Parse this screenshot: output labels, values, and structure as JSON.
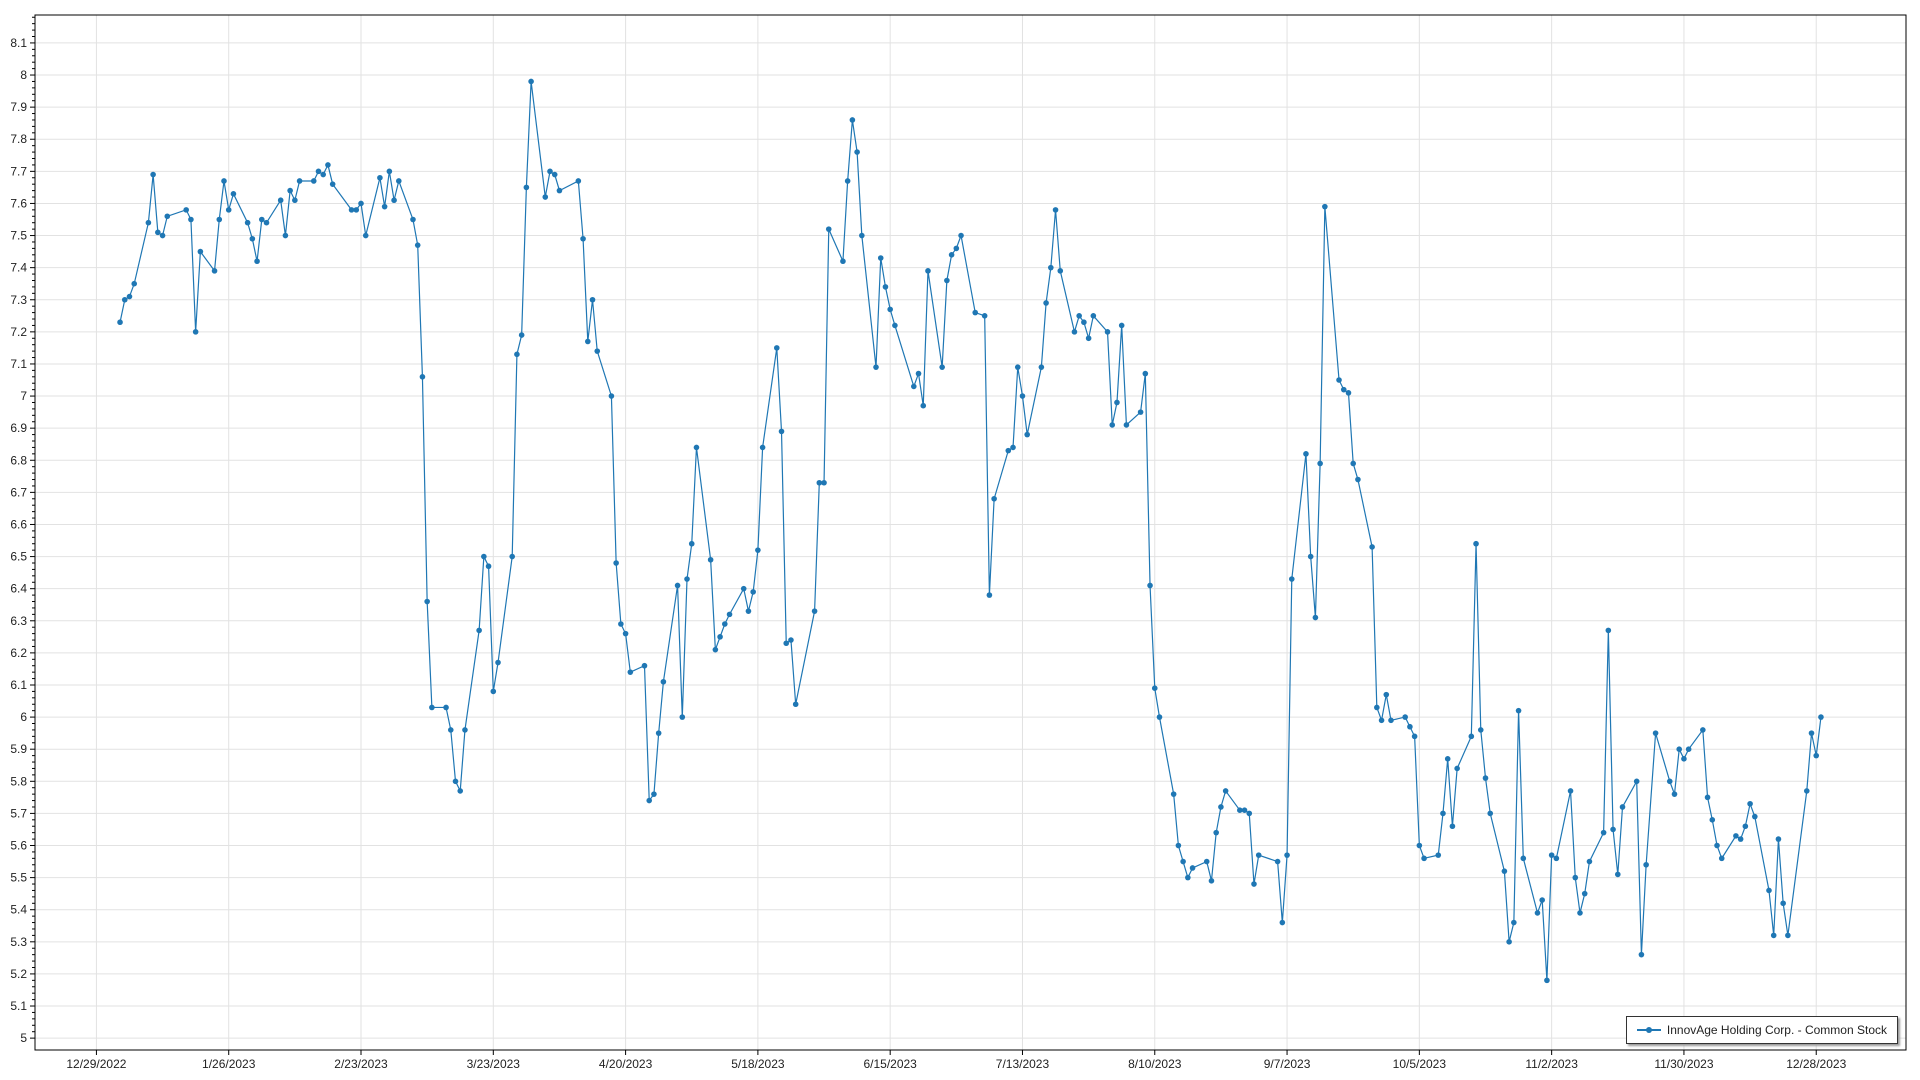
{
  "chart_data": {
    "type": "line",
    "title": "",
    "xlabel": "",
    "ylabel": "",
    "grid": true,
    "legend_placement": "bottom-right",
    "series_color": "#1f77b4",
    "xlim": [
      "2022-12-16",
      "2024-01-16"
    ],
    "ylim": [
      4.963,
      8.187
    ],
    "x_ticks": [
      "12/29/2022",
      "1/26/2023",
      "2/23/2023",
      "3/23/2023",
      "4/20/2023",
      "5/18/2023",
      "6/15/2023",
      "7/13/2023",
      "8/10/2023",
      "9/7/2023",
      "10/5/2023",
      "11/2/2023",
      "11/30/2023",
      "12/28/2023"
    ],
    "y_ticks": [
      "5",
      "5.1",
      "5.2",
      "5.3",
      "5.4",
      "5.5",
      "5.6",
      "5.7",
      "5.8",
      "5.9",
      "6",
      "6.1",
      "6.2",
      "6.3",
      "6.4",
      "6.5",
      "6.6",
      "6.7",
      "6.8",
      "6.9",
      "7",
      "7.1",
      "7.2",
      "7.3",
      "7.4",
      "7.5",
      "7.6",
      "7.7",
      "7.8",
      "7.9",
      "8",
      "8.1"
    ],
    "series": [
      {
        "name": "InnovAge Holding Corp. - Common Stock",
        "points": [
          [
            "2023-01-03",
            7.23
          ],
          [
            "2023-01-04",
            7.3
          ],
          [
            "2023-01-05",
            7.31
          ],
          [
            "2023-01-06",
            7.35
          ],
          [
            "2023-01-09",
            7.54
          ],
          [
            "2023-01-10",
            7.69
          ],
          [
            "2023-01-11",
            7.51
          ],
          [
            "2023-01-12",
            7.5
          ],
          [
            "2023-01-13",
            7.56
          ],
          [
            "2023-01-17",
            7.58
          ],
          [
            "2023-01-18",
            7.55
          ],
          [
            "2023-01-19",
            7.2
          ],
          [
            "2023-01-20",
            7.45
          ],
          [
            "2023-01-23",
            7.39
          ],
          [
            "2023-01-24",
            7.55
          ],
          [
            "2023-01-25",
            7.67
          ],
          [
            "2023-01-26",
            7.58
          ],
          [
            "2023-01-27",
            7.63
          ],
          [
            "2023-01-30",
            7.54
          ],
          [
            "2023-01-31",
            7.49
          ],
          [
            "2023-02-01",
            7.42
          ],
          [
            "2023-02-02",
            7.55
          ],
          [
            "2023-02-03",
            7.54
          ],
          [
            "2023-02-06",
            7.61
          ],
          [
            "2023-02-07",
            7.5
          ],
          [
            "2023-02-08",
            7.64
          ],
          [
            "2023-02-09",
            7.61
          ],
          [
            "2023-02-10",
            7.67
          ],
          [
            "2023-02-13",
            7.67
          ],
          [
            "2023-02-14",
            7.7
          ],
          [
            "2023-02-15",
            7.69
          ],
          [
            "2023-02-16",
            7.72
          ],
          [
            "2023-02-17",
            7.66
          ],
          [
            "2023-02-21",
            7.58
          ],
          [
            "2023-02-22",
            7.58
          ],
          [
            "2023-02-23",
            7.6
          ],
          [
            "2023-02-24",
            7.5
          ],
          [
            "2023-02-27",
            7.68
          ],
          [
            "2023-02-28",
            7.59
          ],
          [
            "2023-03-01",
            7.7
          ],
          [
            "2023-03-02",
            7.61
          ],
          [
            "2023-03-03",
            7.67
          ],
          [
            "2023-03-06",
            7.55
          ],
          [
            "2023-03-07",
            7.47
          ],
          [
            "2023-03-08",
            7.06
          ],
          [
            "2023-03-09",
            6.36
          ],
          [
            "2023-03-10",
            6.03
          ],
          [
            "2023-03-13",
            6.03
          ],
          [
            "2023-03-14",
            5.96
          ],
          [
            "2023-03-15",
            5.8
          ],
          [
            "2023-03-16",
            5.77
          ],
          [
            "2023-03-17",
            5.96
          ],
          [
            "2023-03-20",
            6.27
          ],
          [
            "2023-03-21",
            6.5
          ],
          [
            "2023-03-22",
            6.47
          ],
          [
            "2023-03-23",
            6.08
          ],
          [
            "2023-03-24",
            6.17
          ],
          [
            "2023-03-27",
            6.5
          ],
          [
            "2023-03-28",
            7.13
          ],
          [
            "2023-03-29",
            7.19
          ],
          [
            "2023-03-30",
            7.65
          ],
          [
            "2023-03-31",
            7.98
          ],
          [
            "2023-04-03",
            7.62
          ],
          [
            "2023-04-04",
            7.7
          ],
          [
            "2023-04-05",
            7.69
          ],
          [
            "2023-04-06",
            7.64
          ],
          [
            "2023-04-10",
            7.67
          ],
          [
            "2023-04-11",
            7.49
          ],
          [
            "2023-04-12",
            7.17
          ],
          [
            "2023-04-13",
            7.3
          ],
          [
            "2023-04-14",
            7.14
          ],
          [
            "2023-04-17",
            7.0
          ],
          [
            "2023-04-18",
            6.48
          ],
          [
            "2023-04-19",
            6.29
          ],
          [
            "2023-04-20",
            6.26
          ],
          [
            "2023-04-21",
            6.14
          ],
          [
            "2023-04-24",
            6.16
          ],
          [
            "2023-04-25",
            5.74
          ],
          [
            "2023-04-26",
            5.76
          ],
          [
            "2023-04-27",
            5.95
          ],
          [
            "2023-04-28",
            6.11
          ],
          [
            "2023-05-01",
            6.41
          ],
          [
            "2023-05-02",
            6.0
          ],
          [
            "2023-05-03",
            6.43
          ],
          [
            "2023-05-04",
            6.54
          ],
          [
            "2023-05-05",
            6.84
          ],
          [
            "2023-05-08",
            6.49
          ],
          [
            "2023-05-09",
            6.21
          ],
          [
            "2023-05-10",
            6.25
          ],
          [
            "2023-05-11",
            6.29
          ],
          [
            "2023-05-12",
            6.32
          ],
          [
            "2023-05-15",
            6.4
          ],
          [
            "2023-05-16",
            6.33
          ],
          [
            "2023-05-17",
            6.39
          ],
          [
            "2023-05-18",
            6.52
          ],
          [
            "2023-05-19",
            6.84
          ],
          [
            "2023-05-22",
            7.15
          ],
          [
            "2023-05-23",
            6.89
          ],
          [
            "2023-05-24",
            6.23
          ],
          [
            "2023-05-25",
            6.24
          ],
          [
            "2023-05-26",
            6.04
          ],
          [
            "2023-05-30",
            6.33
          ],
          [
            "2023-05-31",
            6.73
          ],
          [
            "2023-06-01",
            6.73
          ],
          [
            "2023-06-02",
            7.52
          ],
          [
            "2023-06-05",
            7.42
          ],
          [
            "2023-06-06",
            7.67
          ],
          [
            "2023-06-07",
            7.86
          ],
          [
            "2023-06-08",
            7.76
          ],
          [
            "2023-06-09",
            7.5
          ],
          [
            "2023-06-12",
            7.09
          ],
          [
            "2023-06-13",
            7.43
          ],
          [
            "2023-06-14",
            7.34
          ],
          [
            "2023-06-15",
            7.27
          ],
          [
            "2023-06-16",
            7.22
          ],
          [
            "2023-06-20",
            7.03
          ],
          [
            "2023-06-21",
            7.07
          ],
          [
            "2023-06-22",
            6.97
          ],
          [
            "2023-06-23",
            7.39
          ],
          [
            "2023-06-26",
            7.09
          ],
          [
            "2023-06-27",
            7.36
          ],
          [
            "2023-06-28",
            7.44
          ],
          [
            "2023-06-29",
            7.46
          ],
          [
            "2023-06-30",
            7.5
          ],
          [
            "2023-07-03",
            7.26
          ],
          [
            "2023-07-05",
            7.25
          ],
          [
            "2023-07-06",
            6.38
          ],
          [
            "2023-07-07",
            6.68
          ],
          [
            "2023-07-10",
            6.83
          ],
          [
            "2023-07-11",
            6.84
          ],
          [
            "2023-07-12",
            7.09
          ],
          [
            "2023-07-13",
            7.0
          ],
          [
            "2023-07-14",
            6.88
          ],
          [
            "2023-07-17",
            7.09
          ],
          [
            "2023-07-18",
            7.29
          ],
          [
            "2023-07-19",
            7.4
          ],
          [
            "2023-07-20",
            7.58
          ],
          [
            "2023-07-21",
            7.39
          ],
          [
            "2023-07-24",
            7.2
          ],
          [
            "2023-07-25",
            7.25
          ],
          [
            "2023-07-26",
            7.23
          ],
          [
            "2023-07-27",
            7.18
          ],
          [
            "2023-07-28",
            7.25
          ],
          [
            "2023-07-31",
            7.2
          ],
          [
            "2023-08-01",
            6.91
          ],
          [
            "2023-08-02",
            6.98
          ],
          [
            "2023-08-03",
            7.22
          ],
          [
            "2023-08-04",
            6.91
          ],
          [
            "2023-08-07",
            6.95
          ],
          [
            "2023-08-08",
            7.07
          ],
          [
            "2023-08-09",
            6.41
          ],
          [
            "2023-08-10",
            6.09
          ],
          [
            "2023-08-11",
            6.0
          ],
          [
            "2023-08-14",
            5.76
          ],
          [
            "2023-08-15",
            5.6
          ],
          [
            "2023-08-16",
            5.55
          ],
          [
            "2023-08-17",
            5.5
          ],
          [
            "2023-08-18",
            5.53
          ],
          [
            "2023-08-21",
            5.55
          ],
          [
            "2023-08-22",
            5.49
          ],
          [
            "2023-08-23",
            5.64
          ],
          [
            "2023-08-24",
            5.72
          ],
          [
            "2023-08-25",
            5.77
          ],
          [
            "2023-08-28",
            5.71
          ],
          [
            "2023-08-29",
            5.71
          ],
          [
            "2023-08-30",
            5.7
          ],
          [
            "2023-08-31",
            5.48
          ],
          [
            "2023-09-01",
            5.57
          ],
          [
            "2023-09-05",
            5.55
          ],
          [
            "2023-09-06",
            5.36
          ],
          [
            "2023-09-07",
            5.57
          ],
          [
            "2023-09-08",
            6.43
          ],
          [
            "2023-09-11",
            6.82
          ],
          [
            "2023-09-12",
            6.5
          ],
          [
            "2023-09-13",
            6.31
          ],
          [
            "2023-09-14",
            6.79
          ],
          [
            "2023-09-15",
            7.59
          ],
          [
            "2023-09-18",
            7.05
          ],
          [
            "2023-09-19",
            7.02
          ],
          [
            "2023-09-20",
            7.01
          ],
          [
            "2023-09-21",
            6.79
          ],
          [
            "2023-09-22",
            6.74
          ],
          [
            "2023-09-25",
            6.53
          ],
          [
            "2023-09-26",
            6.03
          ],
          [
            "2023-09-27",
            5.99
          ],
          [
            "2023-09-28",
            6.07
          ],
          [
            "2023-09-29",
            5.99
          ],
          [
            "2023-10-02",
            6.0
          ],
          [
            "2023-10-03",
            5.97
          ],
          [
            "2023-10-04",
            5.94
          ],
          [
            "2023-10-05",
            5.6
          ],
          [
            "2023-10-06",
            5.56
          ],
          [
            "2023-10-09",
            5.57
          ],
          [
            "2023-10-10",
            5.7
          ],
          [
            "2023-10-11",
            5.87
          ],
          [
            "2023-10-12",
            5.66
          ],
          [
            "2023-10-13",
            5.84
          ],
          [
            "2023-10-16",
            5.94
          ],
          [
            "2023-10-17",
            6.54
          ],
          [
            "2023-10-18",
            5.96
          ],
          [
            "2023-10-19",
            5.81
          ],
          [
            "2023-10-20",
            5.7
          ],
          [
            "2023-10-23",
            5.52
          ],
          [
            "2023-10-24",
            5.3
          ],
          [
            "2023-10-25",
            5.36
          ],
          [
            "2023-10-26",
            6.02
          ],
          [
            "2023-10-27",
            5.56
          ],
          [
            "2023-10-30",
            5.39
          ],
          [
            "2023-10-31",
            5.43
          ],
          [
            "2023-11-01",
            5.18
          ],
          [
            "2023-11-02",
            5.57
          ],
          [
            "2023-11-03",
            5.56
          ],
          [
            "2023-11-06",
            5.77
          ],
          [
            "2023-11-07",
            5.5
          ],
          [
            "2023-11-08",
            5.39
          ],
          [
            "2023-11-09",
            5.45
          ],
          [
            "2023-11-10",
            5.55
          ],
          [
            "2023-11-13",
            5.64
          ],
          [
            "2023-11-14",
            6.27
          ],
          [
            "2023-11-15",
            5.65
          ],
          [
            "2023-11-16",
            5.51
          ],
          [
            "2023-11-17",
            5.72
          ],
          [
            "2023-11-20",
            5.8
          ],
          [
            "2023-11-21",
            5.26
          ],
          [
            "2023-11-22",
            5.54
          ],
          [
            "2023-11-24",
            5.95
          ],
          [
            "2023-11-27",
            5.8
          ],
          [
            "2023-11-28",
            5.76
          ],
          [
            "2023-11-29",
            5.9
          ],
          [
            "2023-11-30",
            5.87
          ],
          [
            "2023-12-01",
            5.9
          ],
          [
            "2023-12-04",
            5.96
          ],
          [
            "2023-12-05",
            5.75
          ],
          [
            "2023-12-06",
            5.68
          ],
          [
            "2023-12-07",
            5.6
          ],
          [
            "2023-12-08",
            5.56
          ],
          [
            "2023-12-11",
            5.63
          ],
          [
            "2023-12-12",
            5.62
          ],
          [
            "2023-12-13",
            5.66
          ],
          [
            "2023-12-14",
            5.73
          ],
          [
            "2023-12-15",
            5.69
          ],
          [
            "2023-12-18",
            5.46
          ],
          [
            "2023-12-19",
            5.32
          ],
          [
            "2023-12-20",
            5.62
          ],
          [
            "2023-12-21",
            5.42
          ],
          [
            "2023-12-22",
            5.32
          ],
          [
            "2023-12-26",
            5.77
          ],
          [
            "2023-12-27",
            5.95
          ],
          [
            "2023-12-28",
            5.88
          ],
          [
            "2023-12-29",
            6.0
          ]
        ]
      }
    ]
  }
}
